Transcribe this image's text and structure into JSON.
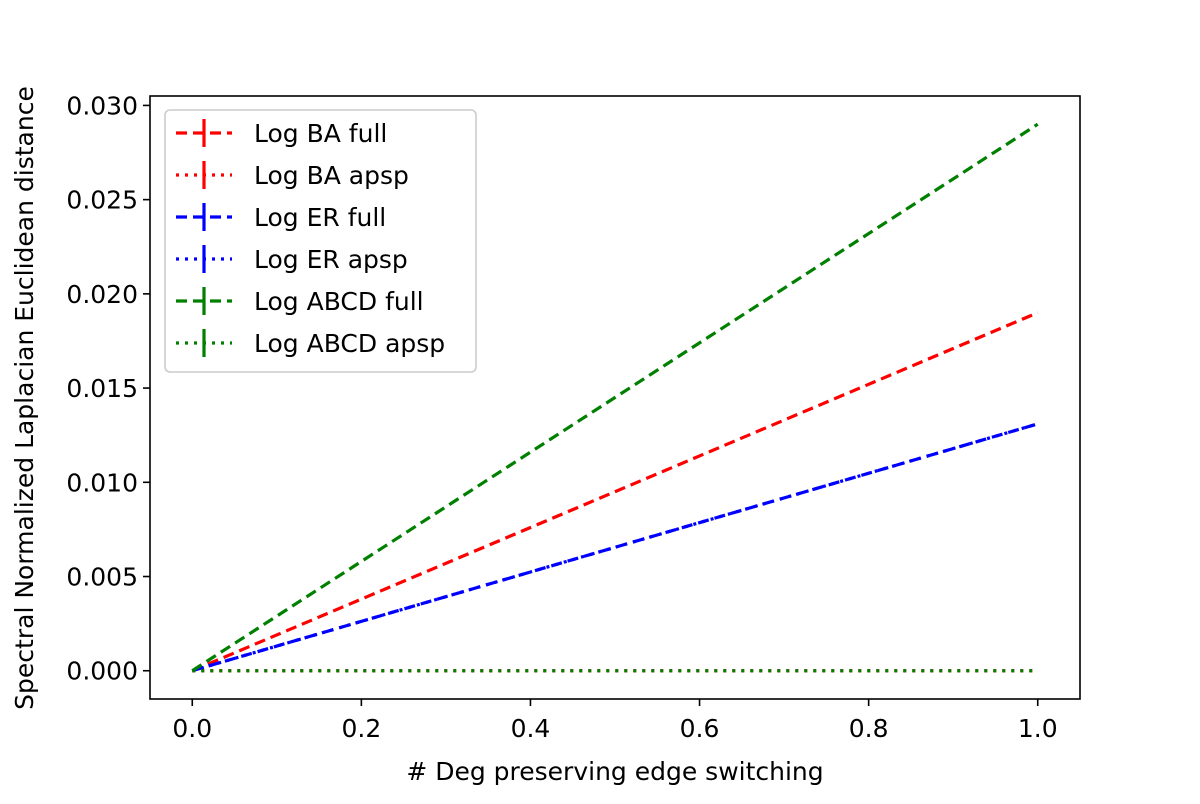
{
  "chart_data": {
    "type": "line",
    "title": "",
    "xlabel": "# Deg preserving edge switching",
    "ylabel": "Spectral Normalized Laplacian Euclidean distance",
    "xlim": [
      -0.05,
      1.05
    ],
    "ylim": [
      -0.0015,
      0.0305
    ],
    "xticks": [
      0.0,
      0.2,
      0.4,
      0.6,
      0.8,
      1.0
    ],
    "xtick_labels": [
      "0.0",
      "0.2",
      "0.4",
      "0.6",
      "0.8",
      "1.0"
    ],
    "yticks": [
      0.0,
      0.005,
      0.01,
      0.015,
      0.02,
      0.025,
      0.03
    ],
    "ytick_labels": [
      "0.000",
      "0.005",
      "0.010",
      "0.015",
      "0.020",
      "0.025",
      "0.030"
    ],
    "grid": false,
    "legend_position": "top-left",
    "x": [
      0.0,
      1.0
    ],
    "series": [
      {
        "name": "Log BA full",
        "values": [
          0.0,
          0.019
        ],
        "color": "#ff0000",
        "linestyle": "dashed"
      },
      {
        "name": "Log BA apsp",
        "values": [
          0.0,
          0.0
        ],
        "color": "#ff0000",
        "linestyle": "dotted"
      },
      {
        "name": "Log ER full",
        "values": [
          0.0,
          0.0131
        ],
        "color": "#0000ff",
        "linestyle": "dashed"
      },
      {
        "name": "Log ER apsp",
        "values": [
          0.0,
          0.0131
        ],
        "color": "#0000ff",
        "linestyle": "dotted"
      },
      {
        "name": "Log ABCD full",
        "values": [
          0.0,
          0.029
        ],
        "color": "#008000",
        "linestyle": "dashed"
      },
      {
        "name": "Log ABCD apsp",
        "values": [
          0.0,
          0.0
        ],
        "color": "#008000",
        "linestyle": "dotted"
      }
    ]
  }
}
